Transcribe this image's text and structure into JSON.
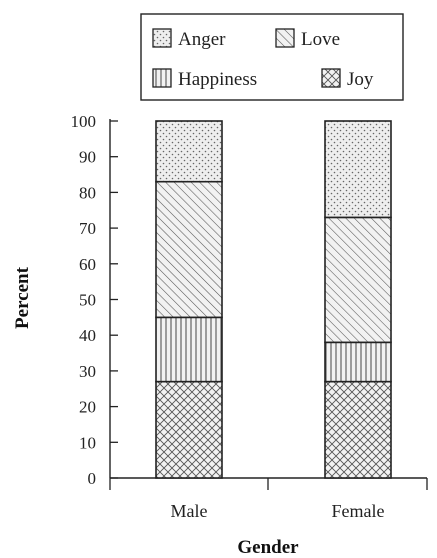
{
  "chart_data": {
    "type": "bar",
    "stacked": true,
    "percent_stacked": true,
    "title": "",
    "xlabel": "Gender",
    "ylabel": "Percent",
    "ylim": [
      0,
      100
    ],
    "yticks": [
      0,
      10,
      20,
      30,
      40,
      50,
      60,
      70,
      80,
      90,
      100
    ],
    "categories": [
      "Male",
      "Female"
    ],
    "grid": false,
    "legend_position": "top",
    "series": [
      {
        "name": "Joy",
        "pattern": "crosshatch",
        "values": [
          27,
          27
        ]
      },
      {
        "name": "Happiness",
        "pattern": "vertical-lines",
        "values": [
          18,
          11
        ]
      },
      {
        "name": "Love",
        "pattern": "diagonal-lines",
        "values": [
          38,
          35
        ]
      },
      {
        "name": "Anger",
        "pattern": "dots",
        "values": [
          17,
          27
        ]
      }
    ],
    "legend_order": [
      "Anger",
      "Love",
      "Happiness",
      "Joy"
    ]
  }
}
